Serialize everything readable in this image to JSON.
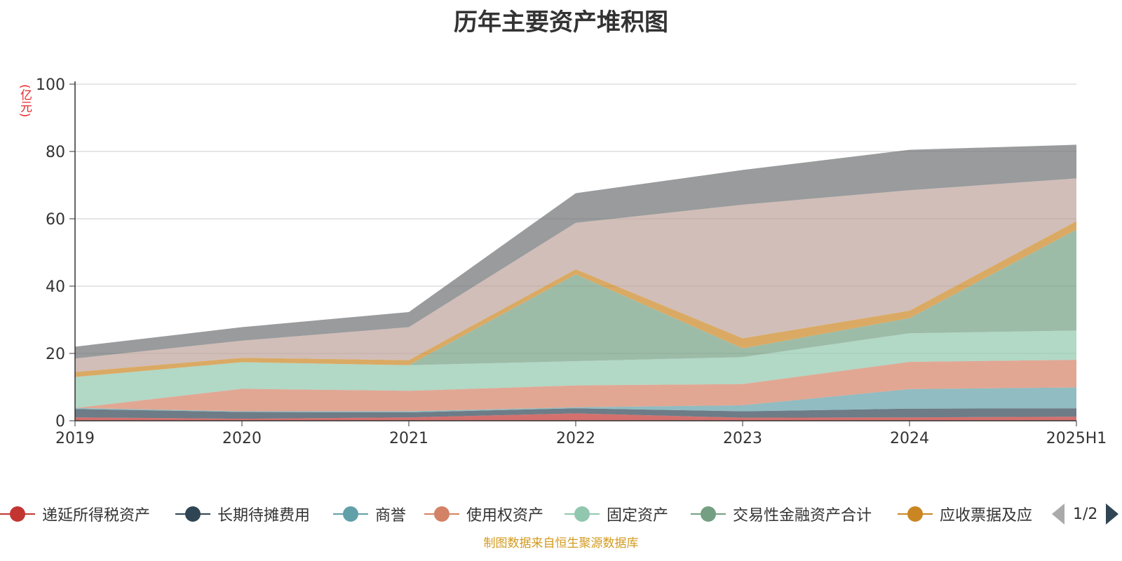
{
  "chart_data": {
    "type": "area",
    "stacked": true,
    "title": "历年主要资产堆积图",
    "ylabel": "(亿元)",
    "ylim": [
      0,
      100
    ],
    "yticks": [
      0,
      20,
      40,
      60,
      80,
      100
    ],
    "grid": true,
    "legend_position": "bottom",
    "categories": [
      "2019",
      "2020",
      "2021",
      "2022",
      "2023",
      "2024",
      "2025H1"
    ],
    "series": [
      {
        "name": "递延所得税资产",
        "color": "#c23531",
        "values": [
          1.0,
          0.6,
          1.0,
          2.2,
          0.9,
          1.0,
          1.2
        ]
      },
      {
        "name": "长期待摊费用",
        "color": "#2f4554",
        "values": [
          2.5,
          2.0,
          1.5,
          1.5,
          1.9,
          2.6,
          2.5
        ]
      },
      {
        "name": "商誉",
        "color": "#61a0a8",
        "values": [
          0.3,
          0.2,
          0.3,
          0.3,
          1.8,
          5.8,
          6.2
        ]
      },
      {
        "name": "使用权资产",
        "color": "#d48265",
        "values": [
          0.0,
          6.7,
          6.1,
          6.5,
          6.3,
          8.1,
          8.2
        ]
      },
      {
        "name": "固定资产",
        "color": "#91c7ae",
        "values": [
          9.2,
          7.9,
          7.6,
          7.2,
          8.0,
          8.5,
          8.7
        ]
      },
      {
        "name": "交易性金融资产合计",
        "color": "#749f83",
        "values": [
          0.0,
          0.0,
          0.0,
          25.8,
          2.6,
          4.5,
          30.0
        ]
      },
      {
        "name": "应收票据及应",
        "color": "#ca8622",
        "values": [
          1.5,
          1.3,
          1.5,
          1.5,
          3.0,
          2.2,
          2.5
        ]
      },
      {
        "color": "#bda29a",
        "values": [
          4.0,
          5.1,
          9.8,
          13.8,
          39.7,
          35.8,
          12.7
        ]
      },
      {
        "color": "#6e7074",
        "values": [
          3.5,
          4.0,
          4.5,
          8.8,
          10.3,
          12.0,
          10.0
        ]
      }
    ]
  },
  "legend": {
    "items": [
      {
        "label": "递延所得税资产",
        "color": "#c23531"
      },
      {
        "label": "长期待摊费用",
        "color": "#2f4554"
      },
      {
        "label": "商誉",
        "color": "#61a0a8"
      },
      {
        "label": "使用权资产",
        "color": "#d48265"
      },
      {
        "label": "固定资产",
        "color": "#91c7ae"
      },
      {
        "label": "交易性金融资产合计",
        "color": "#749f83"
      },
      {
        "label": "应收票据及应",
        "color": "#ca8622"
      }
    ],
    "page": "1/2"
  },
  "source": "制图数据来自恒生聚源数据库"
}
